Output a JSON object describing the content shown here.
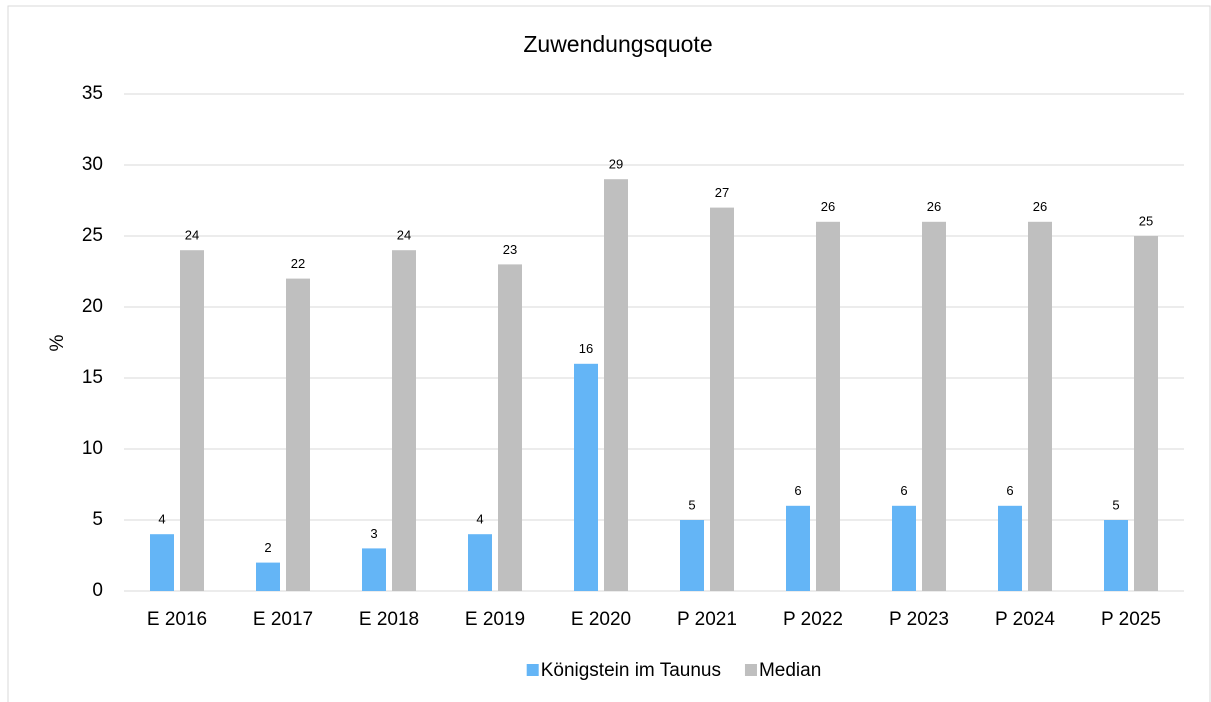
{
  "chart_data": {
    "type": "bar",
    "title": "Zuwendungsquote",
    "y_label": "%",
    "categories": [
      "E 2016",
      "E 2017",
      "E 2018",
      "E 2019",
      "E 2020",
      "P 2021",
      "P 2022",
      "P 2023",
      "P 2024",
      "P 2025"
    ],
    "series": [
      {
        "name": "Königstein im Taunus",
        "color": "#64b5f6",
        "values": [
          4,
          2,
          3,
          4,
          16,
          5,
          6,
          6,
          6,
          5
        ]
      },
      {
        "name": "Median",
        "color": "#bfbfbf",
        "values": [
          24,
          22,
          24,
          23,
          29,
          27,
          26,
          26,
          26,
          25
        ]
      }
    ],
    "ylim": [
      0,
      35
    ],
    "yticks": [
      0,
      5,
      10,
      15,
      20,
      25,
      30,
      35
    ],
    "grid": true,
    "legend": "bottom",
    "data_labels": true
  }
}
